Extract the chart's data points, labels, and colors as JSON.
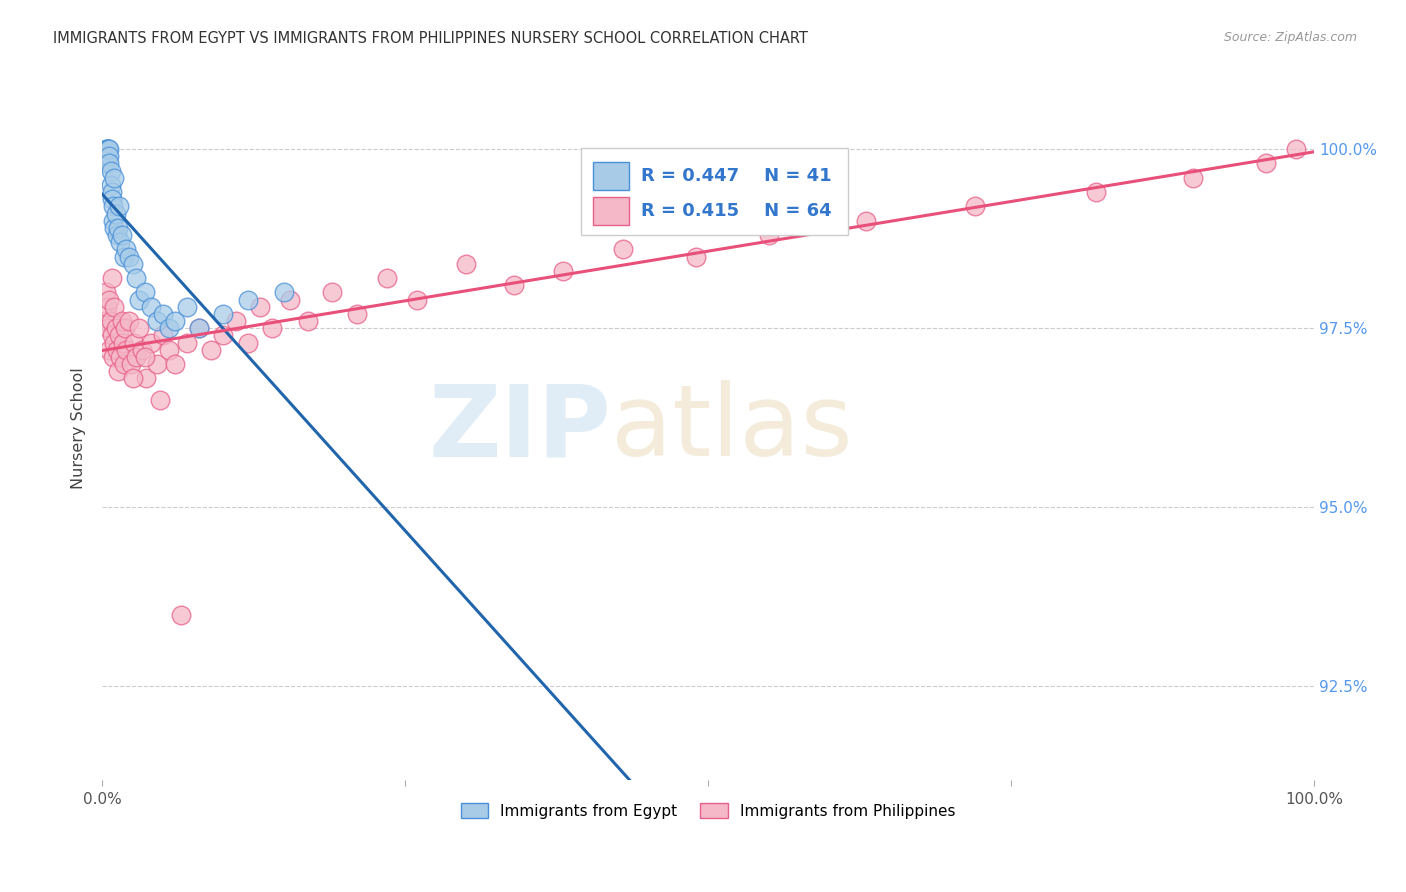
{
  "title": "IMMIGRANTS FROM EGYPT VS IMMIGRANTS FROM PHILIPPINES NURSERY SCHOOL CORRELATION CHART",
  "source": "Source: ZipAtlas.com",
  "ylabel": "Nursery School",
  "y_ticks": [
    92.5,
    95.0,
    97.5,
    100.0
  ],
  "y_tick_labels": [
    "92.5%",
    "95.0%",
    "97.5%",
    "100.0%"
  ],
  "xlim": [
    0.0,
    1.0
  ],
  "ylim": [
    91.2,
    101.0
  ],
  "egypt_color": "#a8cce8",
  "egypt_edge_color": "#4a90d9",
  "philippines_color": "#f4b8c8",
  "philippines_edge_color": "#e8608a",
  "trend_egypt_color": "#2166ac",
  "trend_philippines_color": "#e8507a",
  "legend_r_egypt": "R = 0.447",
  "legend_n_egypt": "N = 41",
  "legend_r_phil": "R = 0.415",
  "legend_n_phil": "N = 64",
  "egypt_x": [
    0.002,
    0.003,
    0.004,
    0.004,
    0.005,
    0.005,
    0.005,
    0.006,
    0.006,
    0.006,
    0.007,
    0.007,
    0.008,
    0.008,
    0.009,
    0.009,
    0.01,
    0.01,
    0.011,
    0.012,
    0.013,
    0.014,
    0.015,
    0.016,
    0.018,
    0.02,
    0.022,
    0.025,
    0.028,
    0.03,
    0.035,
    0.04,
    0.045,
    0.05,
    0.055,
    0.06,
    0.07,
    0.08,
    0.1,
    0.12,
    0.15
  ],
  "egypt_y": [
    99.8,
    100.0,
    99.9,
    100.0,
    100.0,
    100.0,
    100.0,
    100.0,
    99.9,
    99.8,
    99.7,
    99.5,
    99.4,
    99.3,
    99.2,
    99.0,
    98.9,
    99.6,
    99.1,
    98.8,
    98.9,
    99.2,
    98.7,
    98.8,
    98.5,
    98.6,
    98.5,
    98.4,
    98.2,
    97.9,
    98.0,
    97.8,
    97.6,
    97.7,
    97.5,
    97.6,
    97.8,
    97.5,
    97.7,
    97.9,
    98.0
  ],
  "phil_x": [
    0.002,
    0.003,
    0.004,
    0.005,
    0.006,
    0.006,
    0.007,
    0.008,
    0.008,
    0.009,
    0.01,
    0.01,
    0.011,
    0.012,
    0.013,
    0.014,
    0.015,
    0.016,
    0.017,
    0.018,
    0.019,
    0.02,
    0.022,
    0.024,
    0.026,
    0.028,
    0.03,
    0.033,
    0.036,
    0.04,
    0.045,
    0.05,
    0.055,
    0.06,
    0.07,
    0.08,
    0.09,
    0.1,
    0.11,
    0.12,
    0.13,
    0.14,
    0.155,
    0.17,
    0.19,
    0.21,
    0.235,
    0.26,
    0.3,
    0.34,
    0.38,
    0.43,
    0.49,
    0.55,
    0.63,
    0.72,
    0.82,
    0.9,
    0.96,
    0.985,
    0.025,
    0.035,
    0.048,
    0.065
  ],
  "phil_y": [
    97.6,
    98.0,
    97.8,
    97.5,
    97.2,
    97.9,
    97.6,
    97.4,
    98.2,
    97.1,
    97.3,
    97.8,
    97.5,
    97.2,
    96.9,
    97.4,
    97.1,
    97.6,
    97.3,
    97.0,
    97.5,
    97.2,
    97.6,
    97.0,
    97.3,
    97.1,
    97.5,
    97.2,
    96.8,
    97.3,
    97.0,
    97.4,
    97.2,
    97.0,
    97.3,
    97.5,
    97.2,
    97.4,
    97.6,
    97.3,
    97.8,
    97.5,
    97.9,
    97.6,
    98.0,
    97.7,
    98.2,
    97.9,
    98.4,
    98.1,
    98.3,
    98.6,
    98.5,
    98.8,
    99.0,
    99.2,
    99.4,
    99.6,
    99.8,
    100.0,
    96.8,
    97.1,
    96.5,
    93.5
  ],
  "watermark_zip": "ZIP",
  "watermark_atlas": "atlas",
  "background_color": "#ffffff",
  "grid_color": "#cccccc",
  "title_color": "#333333",
  "right_tick_color": "#5599ee"
}
